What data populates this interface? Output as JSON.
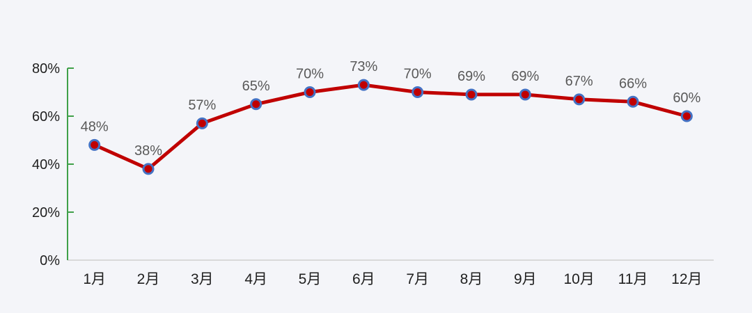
{
  "chart_data": {
    "type": "line",
    "categories": [
      "1月",
      "2月",
      "3月",
      "4月",
      "5月",
      "6月",
      "7月",
      "8月",
      "9月",
      "10月",
      "11月",
      "12月"
    ],
    "values": [
      48,
      38,
      57,
      65,
      70,
      73,
      70,
      69,
      69,
      67,
      66,
      60
    ],
    "labels": [
      "48%",
      "38%",
      "57%",
      "65%",
      "70%",
      "73%",
      "70%",
      "69%",
      "69%",
      "67%",
      "66%",
      "60%"
    ],
    "title": "",
    "xlabel": "",
    "ylabel": "",
    "ylim": [
      0,
      80
    ],
    "yticks": [
      0,
      20,
      40,
      60,
      80
    ],
    "ytick_labels": [
      "0%",
      "20%",
      "40%",
      "60%",
      "80%"
    ],
    "grid": "off",
    "legend": "none",
    "colors": {
      "background": "#f4f5f9",
      "line": "#c00000",
      "marker_fill": "#c00000",
      "marker_ring": "#4472c4",
      "y_axis": "#3fa049",
      "x_axis_line": "#d9d9d9",
      "data_label": "#595959",
      "axis_label": "#1f1f1f"
    }
  }
}
